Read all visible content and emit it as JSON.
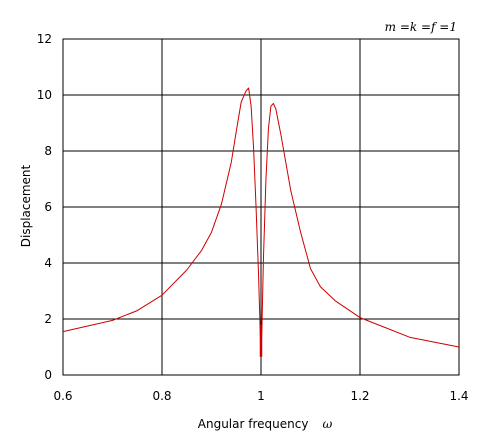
{
  "chart_data": {
    "type": "line",
    "title": "",
    "annotation": "m =k =f =1",
    "xlabel": "Angular frequency",
    "xlabel_symbol": "ω",
    "ylabel": "Displacement",
    "xlim": [
      0.6,
      1.4
    ],
    "ylim": [
      0,
      12
    ],
    "xticks": [
      0.6,
      0.8,
      1.0,
      1.2,
      1.4
    ],
    "xtick_labels": [
      "0.6",
      "0.8",
      "1",
      "1.2",
      "1.4"
    ],
    "yticks": [
      0,
      2,
      4,
      6,
      8,
      10,
      12
    ],
    "ytick_labels": [
      "0",
      "2",
      "4",
      "6",
      "8",
      "10",
      "12"
    ],
    "grid": true,
    "series": [
      {
        "color": "#cc0000",
        "x": [
          0.6,
          0.7,
          0.75,
          0.8,
          0.85,
          0.88,
          0.9,
          0.92,
          0.94,
          0.95,
          0.96,
          0.97,
          0.975,
          0.98,
          0.985,
          0.99,
          0.995,
          0.998,
          1.0,
          1.002,
          1.005,
          1.01,
          1.015,
          1.02,
          1.025,
          1.03,
          1.04,
          1.05,
          1.06,
          1.08,
          1.1,
          1.12,
          1.15,
          1.2,
          1.25,
          1.3,
          1.4
        ],
        "y": [
          1.55,
          1.95,
          2.3,
          2.85,
          3.75,
          4.45,
          5.1,
          6.1,
          7.6,
          8.7,
          9.75,
          10.15,
          10.25,
          9.6,
          8.1,
          6.0,
          3.6,
          1.8,
          0.65,
          1.8,
          4.2,
          7.0,
          8.8,
          9.6,
          9.7,
          9.5,
          8.6,
          7.6,
          6.6,
          5.1,
          3.8,
          3.15,
          2.65,
          2.05,
          1.7,
          1.35,
          1.0
        ]
      }
    ]
  }
}
